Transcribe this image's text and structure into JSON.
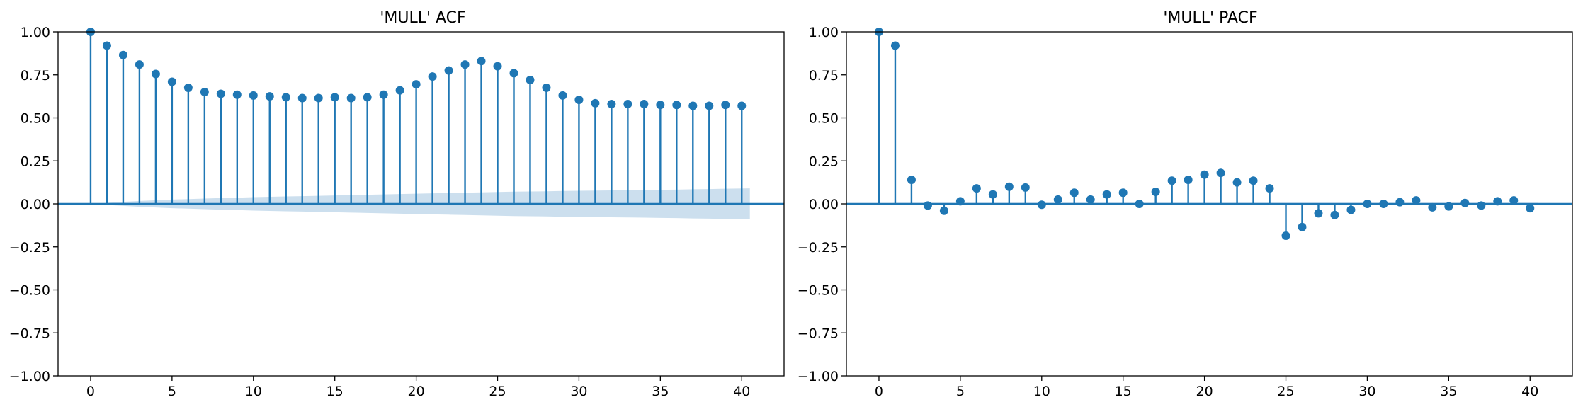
{
  "colors": {
    "stem": "#1f77b4",
    "confint": "#c6dbec",
    "axes": "#000000"
  },
  "chart_data": [
    {
      "type": "stem",
      "title": "'MULL' ACF",
      "xlabel": "",
      "ylabel": "",
      "xlim": [
        -2,
        42.6
      ],
      "ylim": [
        -1.0,
        1.0
      ],
      "xticks": [
        0,
        5,
        10,
        15,
        20,
        25,
        30,
        35,
        40
      ],
      "yticks": [
        -1.0,
        -0.75,
        -0.5,
        -0.25,
        0.0,
        0.25,
        0.5,
        0.75,
        1.0
      ],
      "ytick_labels": [
        "−1.00",
        "−0.75",
        "−0.50",
        "−0.25",
        "0.00",
        "0.25",
        "0.50",
        "0.75",
        "1.00"
      ],
      "grid": false,
      "x": [
        0,
        1,
        2,
        3,
        4,
        5,
        6,
        7,
        8,
        9,
        10,
        11,
        12,
        13,
        14,
        15,
        16,
        17,
        18,
        19,
        20,
        21,
        22,
        23,
        24,
        25,
        26,
        27,
        28,
        29,
        30,
        31,
        32,
        33,
        34,
        35,
        36,
        37,
        38,
        39,
        40
      ],
      "values": [
        1.0,
        0.92,
        0.865,
        0.81,
        0.755,
        0.71,
        0.675,
        0.65,
        0.64,
        0.635,
        0.63,
        0.625,
        0.62,
        0.615,
        0.615,
        0.62,
        0.615,
        0.62,
        0.635,
        0.66,
        0.695,
        0.74,
        0.775,
        0.81,
        0.83,
        0.8,
        0.76,
        0.72,
        0.675,
        0.63,
        0.605,
        0.585,
        0.58,
        0.58,
        0.58,
        0.575,
        0.575,
        0.57,
        0.57,
        0.575,
        0.57
      ],
      "confint_band": [
        0.0,
        0.006,
        0.012,
        0.017,
        0.021,
        0.025,
        0.028,
        0.031,
        0.034,
        0.036,
        0.039,
        0.041,
        0.043,
        0.045,
        0.047,
        0.049,
        0.051,
        0.053,
        0.055,
        0.057,
        0.059,
        0.061,
        0.063,
        0.065,
        0.067,
        0.069,
        0.071,
        0.072,
        0.073,
        0.075,
        0.076,
        0.077,
        0.078,
        0.079,
        0.08,
        0.082,
        0.083,
        0.085,
        0.086,
        0.088,
        0.09
      ]
    },
    {
      "type": "stem",
      "title": "'MULL' PACF",
      "xlabel": "",
      "ylabel": "",
      "xlim": [
        -2,
        42.6
      ],
      "ylim": [
        -1.0,
        1.0
      ],
      "xticks": [
        0,
        5,
        10,
        15,
        20,
        25,
        30,
        35,
        40
      ],
      "yticks": [
        -1.0,
        -0.75,
        -0.5,
        -0.25,
        0.0,
        0.25,
        0.5,
        0.75,
        1.0
      ],
      "ytick_labels": [
        "−1.00",
        "−0.75",
        "−0.50",
        "−0.25",
        "0.00",
        "0.25",
        "0.50",
        "0.75",
        "1.00"
      ],
      "grid": false,
      "x": [
        0,
        1,
        2,
        3,
        4,
        5,
        6,
        7,
        8,
        9,
        10,
        11,
        12,
        13,
        14,
        15,
        16,
        17,
        18,
        19,
        20,
        21,
        22,
        23,
        24,
        25,
        26,
        27,
        28,
        29,
        30,
        31,
        32,
        33,
        34,
        35,
        36,
        37,
        38,
        39,
        40
      ],
      "values": [
        1.0,
        0.92,
        0.14,
        -0.01,
        -0.04,
        0.015,
        0.09,
        0.055,
        0.1,
        0.095,
        -0.005,
        0.025,
        0.065,
        0.025,
        0.055,
        0.065,
        0.0,
        0.07,
        0.135,
        0.14,
        0.17,
        0.18,
        0.125,
        0.135,
        0.09,
        -0.185,
        -0.135,
        -0.055,
        -0.065,
        -0.035,
        0.0,
        0.0,
        0.01,
        0.02,
        -0.02,
        -0.015,
        0.005,
        -0.01,
        0.015,
        0.02,
        -0.025
      ],
      "confint_band": [
        0.0,
        0.006,
        0.006,
        0.006,
        0.006,
        0.006,
        0.006,
        0.006,
        0.006,
        0.006,
        0.006,
        0.006,
        0.006,
        0.006,
        0.006,
        0.006,
        0.006,
        0.006,
        0.006,
        0.006,
        0.006,
        0.006,
        0.006,
        0.006,
        0.006,
        0.006,
        0.006,
        0.006,
        0.006,
        0.006,
        0.006,
        0.006,
        0.006,
        0.006,
        0.006,
        0.006,
        0.006,
        0.006,
        0.006,
        0.006,
        0.006
      ]
    }
  ]
}
